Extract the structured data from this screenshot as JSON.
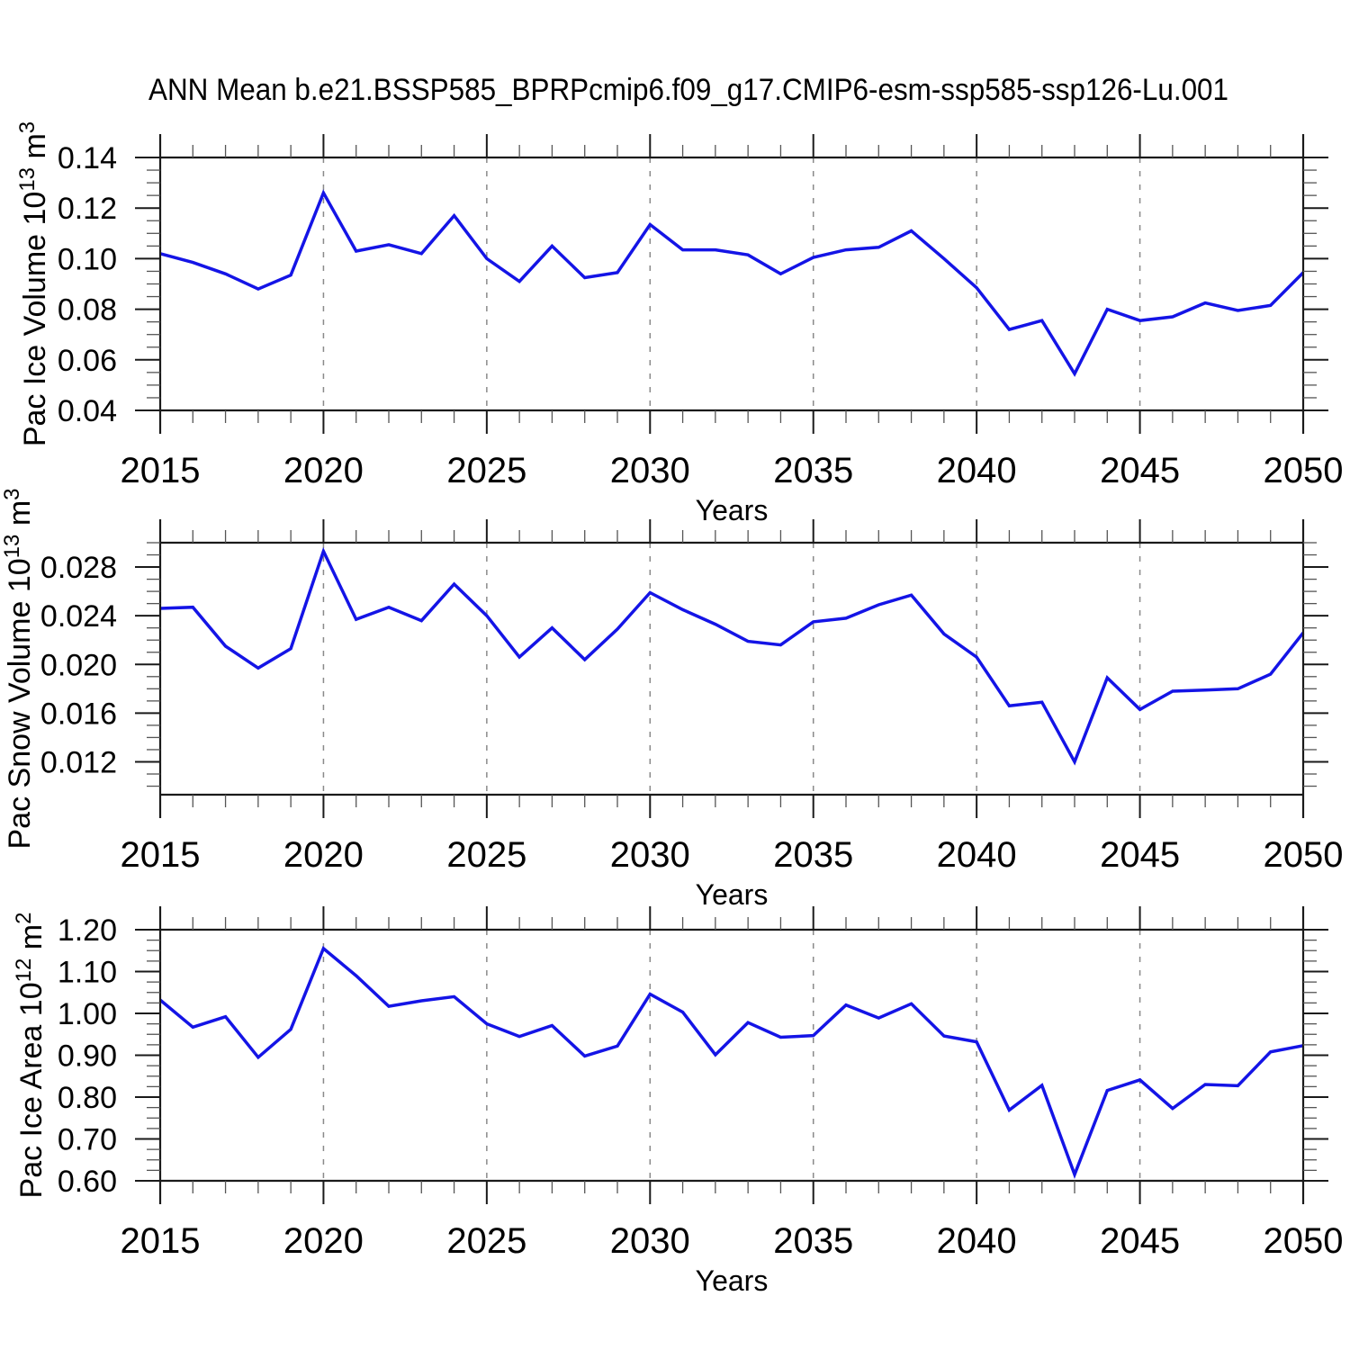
{
  "title": "ANN Mean b.e21.BSSP585_BPRPcmip6.f09_g17.CMIP6-esm-ssp585-ssp126-Lu.001",
  "colors": {
    "line": "#1414e6",
    "frame": "#1a1a1a",
    "major_tick": "#1a1a1a",
    "minor_tick": "#555555",
    "gridline": "#8a8a8a",
    "text": "#000000",
    "background": "#ffffff"
  },
  "x_axis": {
    "label": "Years",
    "min": 2015,
    "max": 2050,
    "major_tick_step": 5,
    "minor_tick_step": 1,
    "tick_labels": [
      "2015",
      "2020",
      "2025",
      "2030",
      "2035",
      "2040",
      "2045",
      "2050"
    ],
    "gridline_years": [
      2020,
      2025,
      2030,
      2035,
      2040,
      2045
    ],
    "years": [
      2015,
      2016,
      2017,
      2018,
      2019,
      2020,
      2021,
      2022,
      2023,
      2024,
      2025,
      2026,
      2027,
      2028,
      2029,
      2030,
      2031,
      2032,
      2033,
      2034,
      2035,
      2036,
      2037,
      2038,
      2039,
      2040,
      2041,
      2042,
      2043,
      2044,
      2045,
      2046,
      2047,
      2048,
      2049,
      2050
    ]
  },
  "chart_data": [
    {
      "id": "pac-ice-volume",
      "type": "line",
      "title": "",
      "xlabel": "Years",
      "ylabel": "Pac Ice Volume 10^13 m^3",
      "ylabel_parts": [
        {
          "text": "Pac Ice Volume 10"
        },
        {
          "text": "13",
          "sup": true
        },
        {
          "text": " m"
        },
        {
          "text": "3",
          "sup": true
        }
      ],
      "ylim": [
        0.04,
        0.14
      ],
      "yticks": [
        0.04,
        0.06,
        0.08,
        0.1,
        0.12,
        0.14
      ],
      "ytick_labels": [
        "0.04",
        "0.06",
        "0.08",
        "0.10",
        "0.12",
        "0.14"
      ],
      "y_minor_step": 0.005,
      "grid": "vertical-dashed",
      "legend": "none",
      "values": [
        0.102,
        0.0985,
        0.094,
        0.088,
        0.0935,
        0.126,
        0.103,
        0.1055,
        0.102,
        0.117,
        0.1,
        0.091,
        0.105,
        0.0925,
        0.0945,
        0.1135,
        0.1035,
        0.1035,
        0.1015,
        0.094,
        0.1005,
        0.1035,
        0.1045,
        0.111,
        0.1,
        0.0885,
        0.072,
        0.0755,
        0.0545,
        0.08,
        0.0755,
        0.077,
        0.0825,
        0.0795,
        0.0815,
        0.0945
      ]
    },
    {
      "id": "pac-snow-volume",
      "type": "line",
      "title": "",
      "xlabel": "Years",
      "ylabel": "Pac Snow Volume 10^13 m^3",
      "ylabel_parts": [
        {
          "text": "Pac Snow Volume 10"
        },
        {
          "text": "13",
          "sup": true
        },
        {
          "text": " m"
        },
        {
          "text": "3",
          "sup": true
        }
      ],
      "ylim": [
        0.0093,
        0.03
      ],
      "yticks": [
        0.012,
        0.016,
        0.02,
        0.024,
        0.028
      ],
      "ytick_labels": [
        "0.012",
        "0.016",
        "0.020",
        "0.024",
        "0.028"
      ],
      "y_minor_step": 0.001,
      "grid": "vertical-dashed",
      "legend": "none",
      "values": [
        0.0246,
        0.0247,
        0.0215,
        0.0197,
        0.0213,
        0.0293,
        0.0237,
        0.0247,
        0.0236,
        0.0266,
        0.024,
        0.0206,
        0.023,
        0.0204,
        0.0229,
        0.0259,
        0.0245,
        0.0233,
        0.0219,
        0.0216,
        0.0235,
        0.0238,
        0.0249,
        0.0257,
        0.0225,
        0.0206,
        0.0166,
        0.0169,
        0.012,
        0.0189,
        0.0163,
        0.0178,
        0.0179,
        0.018,
        0.0192,
        0.0226
      ]
    },
    {
      "id": "pac-ice-area",
      "type": "line",
      "title": "",
      "xlabel": "Years",
      "ylabel": "Pac Ice Area 10^12 m^2",
      "ylabel_parts": [
        {
          "text": "Pac Ice Area 10"
        },
        {
          "text": "12",
          "sup": true
        },
        {
          "text": " m"
        },
        {
          "text": "2",
          "sup": true
        }
      ],
      "ylim": [
        0.6,
        1.2
      ],
      "yticks": [
        0.6,
        0.7,
        0.8,
        0.9,
        1.0,
        1.1,
        1.2
      ],
      "ytick_labels": [
        "0.60",
        "0.70",
        "0.80",
        "0.90",
        "1.00",
        "1.10",
        "1.20"
      ],
      "y_minor_step": 0.025,
      "grid": "vertical-dashed",
      "legend": "none",
      "values": [
        1.032,
        0.967,
        0.992,
        0.895,
        0.962,
        1.155,
        1.09,
        1.017,
        1.03,
        1.04,
        0.975,
        0.945,
        0.971,
        0.898,
        0.922,
        1.046,
        1.003,
        0.901,
        0.978,
        0.943,
        0.947,
        1.02,
        0.989,
        1.023,
        0.946,
        0.932,
        0.769,
        0.828,
        0.615,
        0.816,
        0.841,
        0.773,
        0.83,
        0.827,
        0.908,
        0.923
      ]
    }
  ]
}
